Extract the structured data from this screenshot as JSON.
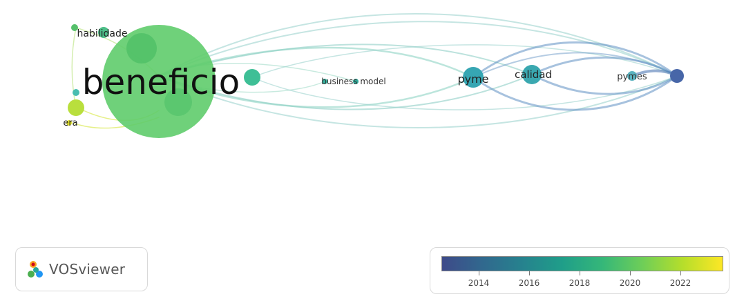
{
  "network": {
    "labels": {
      "beneficio": "beneficio",
      "habilidade": "habilidade",
      "era": "era",
      "business_model": "business model",
      "pyme": "pyme",
      "calidad": "calidad",
      "pymes": "pymes"
    }
  },
  "logo": {
    "text": "VOSviewer",
    "icon": "vosviewer-logo-icon"
  },
  "legend": {
    "ticks": [
      "2014",
      "2016",
      "2018",
      "2020",
      "2022"
    ],
    "colors": [
      "#3e4a89",
      "#31688e",
      "#26828e",
      "#1f9e89",
      "#35b779",
      "#6ece58",
      "#b5de2b",
      "#fde725"
    ]
  }
}
